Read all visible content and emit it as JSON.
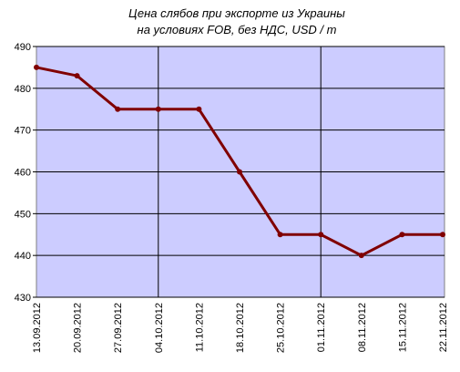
{
  "chart_data": {
    "type": "line",
    "title": [
      "Цена слябов при экспорте из Украины",
      "на условиях FOB, без НДС, USD / т"
    ],
    "categories": [
      "13.09.2012",
      "20.09.2012",
      "27.09.2012",
      "04.10.2012",
      "11.10.2012",
      "18.10.2012",
      "25.10.2012",
      "01.11.2012",
      "08.11.2012",
      "15.11.2012",
      "22.11.2012"
    ],
    "values": [
      485,
      483,
      475,
      475,
      475,
      460,
      445,
      445,
      440,
      445,
      445
    ],
    "color": "#800000",
    "ylim": [
      430,
      490
    ],
    "yticks": [
      430,
      440,
      450,
      460,
      470,
      480,
      490
    ],
    "grid": true,
    "xgrid": [
      "04.10.2012",
      "01.11.2012"
    ]
  }
}
